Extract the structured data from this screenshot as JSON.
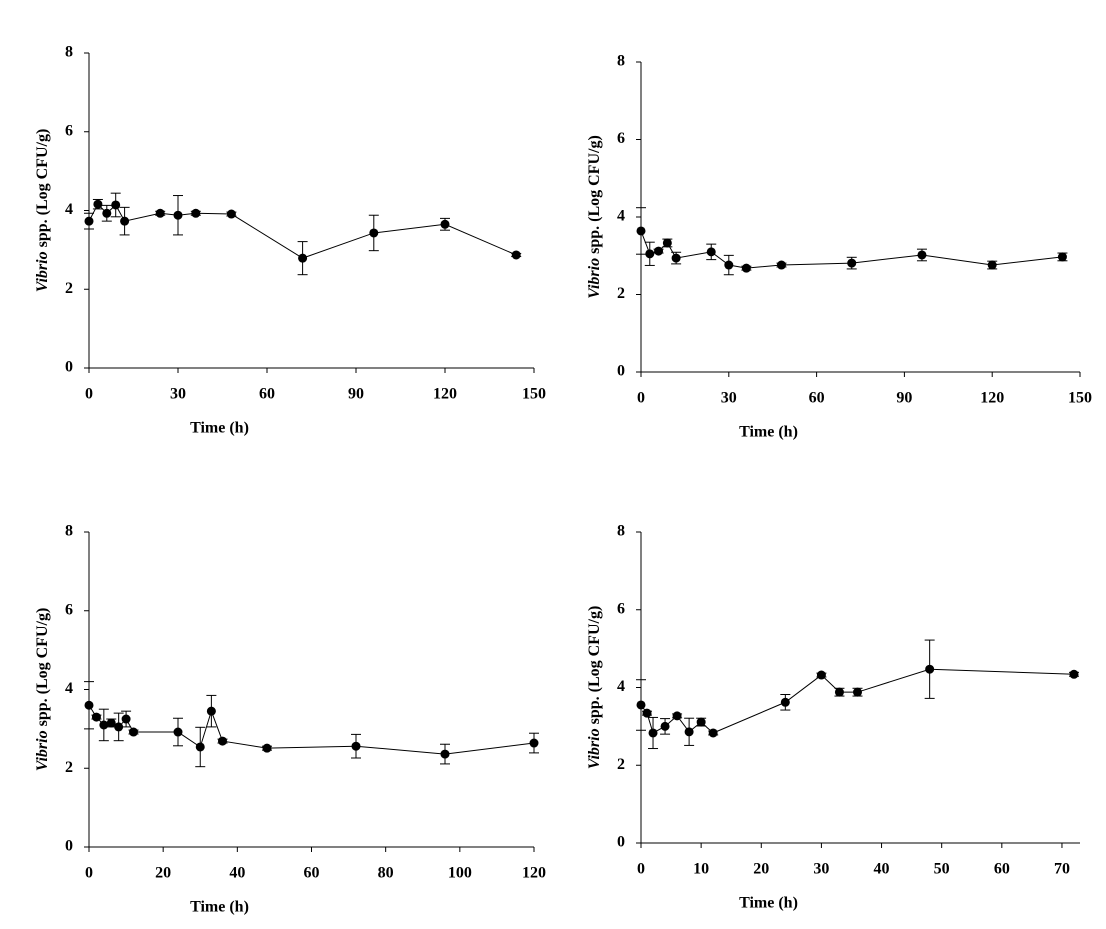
{
  "chart_data": [
    {
      "type": "line",
      "xlabel": "Time (h)",
      "ylabel": "Vibrio spp. (Log CFU/g)",
      "xlim": [
        0,
        150
      ],
      "xticks": [
        0,
        30,
        60,
        90,
        120,
        150
      ],
      "ylim": [
        0,
        8
      ],
      "yticks": [
        0,
        2,
        4,
        6,
        8
      ],
      "x": [
        0,
        3,
        6,
        9,
        12,
        24,
        30,
        36,
        48,
        72,
        96,
        120,
        144
      ],
      "series": [
        {
          "color": "#000000",
          "values": [
            3.73,
            4.16,
            3.93,
            4.14,
            3.73,
            3.93,
            3.88,
            3.93,
            3.91,
            2.79,
            3.43,
            3.65,
            2.87
          ],
          "errors": [
            0.2,
            0.12,
            0.2,
            0.3,
            0.35,
            0.05,
            0.5,
            0.05,
            0.05,
            0.42,
            0.45,
            0.15,
            0.04
          ]
        }
      ]
    },
    {
      "type": "line",
      "xlabel": "Time (h)",
      "ylabel": "Vibrio spp. (Log CFU/g)",
      "xlim": [
        0,
        150
      ],
      "xticks": [
        0,
        30,
        60,
        90,
        120,
        150
      ],
      "ylim": [
        0,
        8
      ],
      "yticks": [
        0,
        2,
        4,
        6,
        8
      ],
      "x": [
        0,
        3,
        6,
        9,
        12,
        24,
        30,
        36,
        48,
        72,
        96,
        120,
        144
      ],
      "series": [
        {
          "color": "#000000",
          "values": [
            3.64,
            3.05,
            3.12,
            3.33,
            2.94,
            3.1,
            2.76,
            2.68,
            2.76,
            2.81,
            3.02,
            2.76,
            2.97
          ],
          "errors": [
            0.6,
            0.3,
            0.05,
            0.1,
            0.15,
            0.2,
            0.25,
            0.05,
            0.05,
            0.15,
            0.15,
            0.1,
            0.1
          ]
        }
      ]
    },
    {
      "type": "line",
      "xlabel": "Time (h)",
      "ylabel": "Vibrio spp. (Log CFU/g)",
      "xlim": [
        0,
        120
      ],
      "xticks": [
        0,
        20,
        40,
        60,
        80,
        100,
        120
      ],
      "ylim": [
        0,
        8
      ],
      "yticks": [
        0,
        2,
        4,
        6,
        8
      ],
      "x": [
        0,
        2,
        4,
        6,
        8,
        10,
        12,
        24,
        30,
        33,
        36,
        48,
        72,
        96,
        120
      ],
      "series": [
        {
          "color": "#000000",
          "values": [
            3.6,
            3.3,
            3.1,
            3.15,
            3.05,
            3.25,
            2.92,
            2.92,
            2.54,
            3.45,
            2.69,
            2.51,
            2.56,
            2.36,
            2.64
          ],
          "errors": [
            0.6,
            0.05,
            0.4,
            0.1,
            0.35,
            0.2,
            0.05,
            0.35,
            0.5,
            0.4,
            0.05,
            0.05,
            0.3,
            0.25,
            0.25
          ]
        }
      ]
    },
    {
      "type": "line",
      "xlabel": "Time (h)",
      "ylabel": "Vibrio spp. (Log CFU/g)",
      "xlim": [
        0,
        73
      ],
      "xticks": [
        0,
        10,
        20,
        30,
        40,
        50,
        60,
        70
      ],
      "ylim": [
        0,
        8
      ],
      "yticks": [
        0,
        2,
        4,
        6,
        8
      ],
      "x": [
        0,
        1,
        2,
        4,
        6,
        8,
        10,
        12,
        24,
        30,
        33,
        36,
        48,
        72
      ],
      "series": [
        {
          "color": "#000000",
          "values": [
            3.55,
            3.34,
            2.83,
            3.0,
            3.27,
            2.86,
            3.11,
            2.83,
            3.62,
            4.32,
            3.88,
            3.88,
            4.47,
            4.34
          ],
          "errors": [
            0.65,
            0.05,
            0.4,
            0.2,
            0.05,
            0.35,
            0.1,
            0.05,
            0.2,
            0.05,
            0.1,
            0.1,
            0.75,
            0.05
          ]
        }
      ]
    }
  ]
}
